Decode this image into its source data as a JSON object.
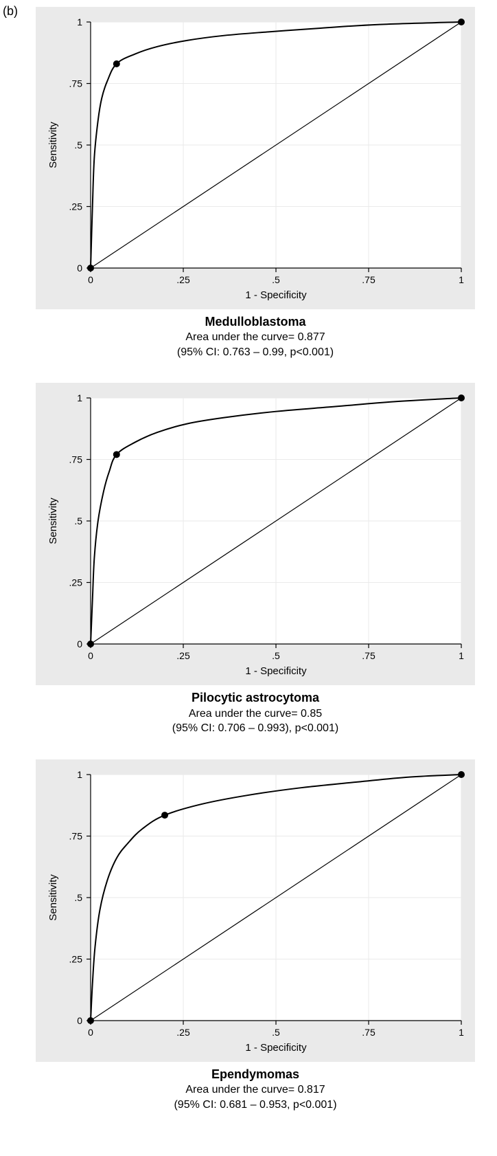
{
  "figure_label": "(b)",
  "global": {
    "page_background": "#ffffff",
    "text_color": "#000000",
    "panel_bg": "#eaeaea",
    "plot_bg": "#ffffff",
    "grid_color": "#eaeaea",
    "axis_color": "#000000",
    "curve_color": "#000000",
    "curve_width": 2.0,
    "diagonal_width": 1.2,
    "marker_radius": 5,
    "tick_length": 6,
    "x_label": "1 - Specificity",
    "y_label": "Sensitivity",
    "x_ticks": [
      0,
      0.25,
      0.5,
      0.75,
      1
    ],
    "x_tick_labels": [
      "0",
      ".25",
      ".5",
      ".75",
      "1"
    ],
    "y_ticks": [
      0,
      0.25,
      0.5,
      0.75,
      1
    ],
    "y_tick_labels": [
      "0",
      ".25",
      ".5",
      ".75",
      "1"
    ],
    "xlim": [
      0,
      1
    ],
    "ylim": [
      0,
      1
    ],
    "tick_fontsize": 14,
    "label_fontsize": 15,
    "title_fontsize": 18,
    "caption_fontsize": 16
  },
  "panels": [
    {
      "id": "medulloblastoma",
      "type": "roc",
      "title": "Medulloblastoma",
      "sub1": "Area under the curve= 0.877",
      "sub2": "(95% CI: 0.763 – 0.99, p<0.001)",
      "roc_curve": [
        [
          0.0,
          0.0
        ],
        [
          0.005,
          0.25
        ],
        [
          0.01,
          0.45
        ],
        [
          0.02,
          0.6
        ],
        [
          0.03,
          0.69
        ],
        [
          0.045,
          0.76
        ],
        [
          0.07,
          0.83
        ],
        [
          0.12,
          0.87
        ],
        [
          0.18,
          0.9
        ],
        [
          0.26,
          0.925
        ],
        [
          0.36,
          0.945
        ],
        [
          0.48,
          0.96
        ],
        [
          0.62,
          0.975
        ],
        [
          0.78,
          0.99
        ],
        [
          1.0,
          1.0
        ]
      ],
      "diagonal": [
        [
          0,
          0
        ],
        [
          1,
          1
        ]
      ],
      "markers": [
        [
          0,
          0
        ],
        [
          0.07,
          0.83
        ],
        [
          1,
          1
        ]
      ]
    },
    {
      "id": "pilocytic",
      "type": "roc",
      "title": "Pilocytic astrocytoma",
      "sub1": "Area under the curve= 0.85",
      "sub2": "(95% CI: 0.706 – 0.993), p<0.001)",
      "roc_curve": [
        [
          0.0,
          0.0
        ],
        [
          0.005,
          0.18
        ],
        [
          0.01,
          0.35
        ],
        [
          0.02,
          0.5
        ],
        [
          0.035,
          0.62
        ],
        [
          0.05,
          0.7
        ],
        [
          0.07,
          0.77
        ],
        [
          0.12,
          0.82
        ],
        [
          0.18,
          0.86
        ],
        [
          0.26,
          0.895
        ],
        [
          0.36,
          0.92
        ],
        [
          0.5,
          0.945
        ],
        [
          0.66,
          0.965
        ],
        [
          0.82,
          0.985
        ],
        [
          1.0,
          1.0
        ]
      ],
      "diagonal": [
        [
          0,
          0
        ],
        [
          1,
          1
        ]
      ],
      "markers": [
        [
          0,
          0
        ],
        [
          0.07,
          0.77
        ],
        [
          1,
          1
        ]
      ]
    },
    {
      "id": "ependymomas",
      "type": "roc",
      "title": "Ependymomas",
      "sub1": "Area under the curve= 0.817",
      "sub2": "(95% CI: 0.681 – 0.953, p<0.001)",
      "roc_curve": [
        [
          0.0,
          0.0
        ],
        [
          0.005,
          0.15
        ],
        [
          0.012,
          0.3
        ],
        [
          0.025,
          0.45
        ],
        [
          0.045,
          0.57
        ],
        [
          0.07,
          0.66
        ],
        [
          0.1,
          0.72
        ],
        [
          0.14,
          0.78
        ],
        [
          0.2,
          0.835
        ],
        [
          0.3,
          0.88
        ],
        [
          0.42,
          0.915
        ],
        [
          0.56,
          0.945
        ],
        [
          0.72,
          0.97
        ],
        [
          0.86,
          0.99
        ],
        [
          1.0,
          1.0
        ]
      ],
      "diagonal": [
        [
          0,
          0
        ],
        [
          1,
          1
        ]
      ],
      "markers": [
        [
          0,
          0
        ],
        [
          0.2,
          0.835
        ],
        [
          1,
          1
        ]
      ]
    }
  ]
}
